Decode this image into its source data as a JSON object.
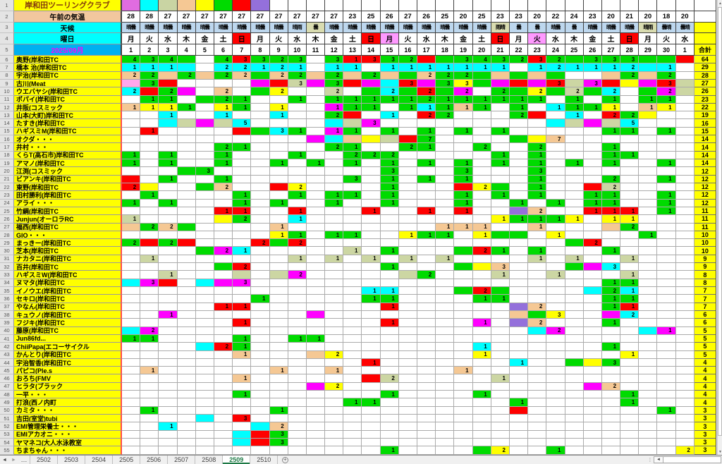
{
  "title": "岸和田ツーリングクラブ",
  "header": {
    "temp_label": "午前の気温",
    "weather_label": "天候",
    "day_label": "曜日",
    "month_label": "2025/09月",
    "total_label": "合計"
  },
  "legend_colors": [
    "#E06CE0",
    "#00FFFF",
    "#C9D4A3",
    "#F5C894",
    "#FFFF00",
    "#00DB00",
    "#FF0000",
    "#9470DB"
  ],
  "temps": [
    28,
    28,
    27,
    27,
    27,
    27,
    27,
    27,
    27,
    27,
    27,
    27,
    23,
    25,
    26,
    27,
    26,
    25,
    20,
    25,
    23,
    23,
    20,
    22,
    24,
    23,
    20,
    21,
    20,
    18,
    20
  ],
  "weather": [
    [
      "晴曇",
      0
    ],
    [
      "晴曇",
      0
    ],
    [
      "晴曇",
      0
    ],
    [
      "晴曇",
      0
    ],
    [
      "晴曇",
      0
    ],
    [
      "晴曇",
      0
    ],
    [
      "晴曇",
      0
    ],
    [
      "晴曇",
      0
    ],
    [
      "晴曇",
      0
    ],
    [
      "晴雨",
      0
    ],
    [
      "曇",
      1
    ],
    [
      "晴曇",
      0
    ],
    [
      "晴曇",
      0
    ],
    [
      "晴曇",
      0
    ],
    [
      "晴曇",
      0
    ],
    [
      "晴曇",
      0
    ],
    [
      "晴曇",
      0
    ],
    [
      "晴曇",
      0
    ],
    [
      "晴曇",
      0
    ],
    [
      "晴曇",
      0
    ],
    [
      "雨晴",
      1
    ],
    [
      "曇",
      0
    ],
    [
      "曇",
      0
    ],
    [
      "晴曇",
      0
    ],
    [
      "曇",
      0
    ],
    [
      "晴曇",
      0
    ],
    [
      "晴曇",
      0
    ],
    [
      "晴曇",
      0
    ],
    [
      "晴雨",
      1
    ],
    [
      "曇晴",
      0
    ],
    [
      "曇晴",
      0
    ]
  ],
  "weather_bg": {
    "0": "#BDD7EE",
    "1": "#D9DCB0"
  },
  "days": [
    [
      "月",
      "n"
    ],
    [
      "火",
      "n"
    ],
    [
      "水",
      "n"
    ],
    [
      "木",
      "n"
    ],
    [
      "金",
      "n"
    ],
    [
      "土",
      "n"
    ],
    [
      "日",
      "s"
    ],
    [
      "月",
      "n"
    ],
    [
      "火",
      "n"
    ],
    [
      "水",
      "n"
    ],
    [
      "木",
      "n"
    ],
    [
      "金",
      "n"
    ],
    [
      "土",
      "n"
    ],
    [
      "日",
      "s"
    ],
    [
      "月",
      "h"
    ],
    [
      "火",
      "n"
    ],
    [
      "水",
      "n"
    ],
    [
      "木",
      "n"
    ],
    [
      "金",
      "n"
    ],
    [
      "土",
      "n"
    ],
    [
      "日",
      "s"
    ],
    [
      "月",
      "n"
    ],
    [
      "火",
      "h"
    ],
    [
      "水",
      "n"
    ],
    [
      "木",
      "n"
    ],
    [
      "金",
      "n"
    ],
    [
      "土",
      "n"
    ],
    [
      "日",
      "s"
    ],
    [
      "月",
      "n"
    ],
    [
      "火",
      "n"
    ],
    [
      "水",
      "n"
    ]
  ],
  "day_bg": {
    "n": "#FFFFFF",
    "s": "#FF0000",
    "h": "#FF99FF"
  },
  "dates": [
    1,
    2,
    3,
    4,
    5,
    6,
    7,
    8,
    9,
    10,
    11,
    12,
    13,
    14,
    15,
    16,
    17,
    18,
    19,
    20,
    21,
    22,
    23,
    24,
    25,
    26,
    27,
    28,
    29,
    30,
    1
  ],
  "palette": {
    "G": "#00DB00",
    "C": "#00FFFF",
    "M": "#FF00FF",
    "R": "#FF0000",
    "Y": "#FFFF00",
    "T": "#F5C894",
    "O": "#CCD6A3",
    "P": "#9470DB",
    "K": "#FFA6EC",
    "W": "#FFFFFF"
  },
  "members": [
    {
      "name": "奥野(岸和田TC",
      "total": 64,
      "cells": {
        "1": "G4",
        "2": "G3",
        "3": "G4",
        "4": "G",
        "6": "G4",
        "7": "R3",
        "8": "G3",
        "9": "G2",
        "10": "G3",
        "12": "G3",
        "13": "R1",
        "14": "R3",
        "15": "G3",
        "16": "G2",
        "17": "R",
        "18": "G",
        "19": "G3",
        "20": "G4",
        "21": "G3",
        "22": "G2",
        "23": "R3",
        "24": "G2",
        "25": "G",
        "26": "G3",
        "27": "G3",
        "28": "G3",
        "29": "G",
        "30": "G",
        "31": "R"
      }
    },
    {
      "name": "橋本 治(岸和田TC",
      "total": 29,
      "cells": {
        "1": "C1",
        "2": "C1",
        "3": "C1",
        "4": "C",
        "6": "C2",
        "7": "C2",
        "8": "C1",
        "9": "C2",
        "10": "C1",
        "12": "C1",
        "13": "C1",
        "15": "C1",
        "16": "C1",
        "17": "C1",
        "18": "C1",
        "19": "C1",
        "20": "C1",
        "21": "C1",
        "23": "C1",
        "24": "C2",
        "25": "C1",
        "26": "C1",
        "27": "C1",
        "28": "C2",
        "29": "C",
        "30": "C1"
      }
    },
    {
      "name": "宇治(岸和田TC",
      "total": 28,
      "cells": {
        "1": "T2",
        "2": "G2",
        "3": "T",
        "4": "G2",
        "5": "T",
        "6": "G2",
        "7": "T2",
        "8": "G",
        "9": "T2",
        "10": "G2",
        "11": "T",
        "12": "G2",
        "13": "T",
        "14": "G2",
        "15": "T",
        "16": "G",
        "17": "T2",
        "18": "G2",
        "19": "G2",
        "20": "G",
        "21": "T",
        "22": "G",
        "23": "T",
        "24": "G",
        "27": "T",
        "28": "G2",
        "29": "T",
        "30": "G2"
      }
    },
    {
      "name": "古川(Meat",
      "total": 27,
      "cells": {
        "1": "K",
        "2": "G3",
        "3": "R",
        "8": "M",
        "9": "R",
        "10": "O3",
        "11": "M",
        "12": "G3",
        "13": "R",
        "14": "M",
        "15": "C",
        "16": "R3",
        "17": "M",
        "18": "G3",
        "19": "Y3",
        "20": "G",
        "21": "M",
        "22": "R",
        "23": "M",
        "24": "R3",
        "25": "O",
        "26": "M3",
        "27": "R",
        "28": "Y",
        "29": "M",
        "30": "R3",
        "31": "O"
      }
    },
    {
      "name": "ウエバヤシ(岸和田TC",
      "total": 26,
      "cells": {
        "1": "C2",
        "2": "R",
        "3": "G2",
        "4": "M",
        "6": "T2",
        "8": "G",
        "9": "Y2",
        "12": "O2",
        "14": "G",
        "15": "C2",
        "16": "G",
        "17": "R2",
        "18": "G",
        "19": "M2",
        "21": "G2",
        "22": "G",
        "23": "Y2",
        "24": "G",
        "25": "O2",
        "26": "G",
        "27": "C2",
        "29": "G",
        "30": "M2",
        "31": "O"
      }
    },
    {
      "name": "ポパイ(岸和田TC",
      "total": 23,
      "cells": {
        "2": "G1",
        "3": "G1",
        "5": "G",
        "6": "G2",
        "7": "G1",
        "10": "G1",
        "12": "G1",
        "13": "G1",
        "14": "G1",
        "15": "G1",
        "16": "G1",
        "17": "G2",
        "18": "G1",
        "19": "G1",
        "20": "G1",
        "21": "G1",
        "22": "G1",
        "23": "G1",
        "25": "G1",
        "27": "G1",
        "29": "G1",
        "30": "G1"
      }
    },
    {
      "name": "井阪(コスミック",
      "total": 22,
      "cells": {
        "1": "T1",
        "2": "Y1",
        "3": "Y1",
        "4": "G1",
        "6": "Y1",
        "7": "G1",
        "9": "Y1",
        "12": "M1",
        "13": "G1",
        "14": "G1",
        "16": "G1",
        "17": "C1",
        "18": "G1",
        "19": "T1",
        "20": "G1",
        "22": "G1",
        "24": "C1",
        "25": "G1",
        "26": "G1",
        "27": "Y1",
        "29": "T1",
        "30": "Y1"
      }
    },
    {
      "name": "山本(大町)岸和田TC",
      "total": 19,
      "cells": {
        "3": "C1",
        "6": "C1",
        "9": "C1",
        "12": "G2",
        "13": "R",
        "15": "C1",
        "17": "R2",
        "18": "G2",
        "22": "G2",
        "23": "R",
        "25": "C1",
        "27": "R2",
        "28": "G2",
        "29": "Y"
      }
    },
    {
      "name": "たすき(岸和田TC",
      "total": 16,
      "cells": {
        "3": "C",
        "4": "O",
        "5": "M",
        "6": "O",
        "7": "C5",
        "12": "C",
        "13": "O",
        "14": "M3",
        "24": "C",
        "25": "O",
        "26": "M",
        "27": "O",
        "28": "C5"
      }
    },
    {
      "name": "ハギスミM(岸和田TC",
      "total": 15,
      "cells": {
        "2": "R1",
        "7": "R",
        "8": "G",
        "9": "C3",
        "10": "G1",
        "12": "M1",
        "13": "G1",
        "15": "G1",
        "17": "G1",
        "19": "G1",
        "21": "G1",
        "27": "G1",
        "28": "G1",
        "30": "G1"
      }
    },
    {
      "name": "オクダ・・・",
      "total": 14,
      "cells": {
        "11": "M",
        "12": "C",
        "13": "T",
        "14": "Y",
        "15": "O",
        "16": "R",
        "17": "G7",
        "22": "G",
        "23": "Y",
        "24": "T7"
      }
    },
    {
      "name": "井村・・・",
      "total": 14,
      "cells": {
        "6": "G2",
        "7": "G1",
        "12": "G2",
        "13": "G1",
        "16": "G2",
        "17": "G1",
        "20": "G2",
        "23": "G2",
        "27": "G1"
      }
    },
    {
      "name": "くらT(高石市)岸和田TC",
      "total": 14,
      "cells": {
        "1": "G1",
        "3": "G1",
        "6": "G1",
        "10": "G1",
        "13": "G2",
        "14": "G2",
        "15": "G2",
        "21": "G1",
        "23": "G1",
        "27": "G1",
        "28": "G1"
      }
    },
    {
      "name": "アマノ(岸和田TC",
      "total": 14,
      "cells": {
        "1": "G1",
        "3": "G1",
        "6": "G1",
        "9": "G1",
        "11": "G1",
        "13": "G1",
        "15": "G1",
        "17": "G1",
        "19": "G1",
        "21": "G1",
        "23": "G1",
        "25": "G1",
        "27": "G1",
        "30": "G1"
      }
    },
    {
      "name": "江渕(コスミック",
      "total": 12,
      "cells": {
        "4": "G",
        "5": "G3",
        "15": "G3",
        "19": "G3",
        "23": "G3"
      }
    },
    {
      "name": "ビアンキ(岸和田TC",
      "total": 12,
      "cells": {
        "1": "R",
        "3": "G1",
        "6": "G1",
        "13": "G3",
        "15": "G1",
        "17": "G1",
        "19": "G1",
        "23": "G1",
        "27": "G2",
        "30": "G1"
      }
    },
    {
      "name": "東野(岸和田TC",
      "total": 12,
      "cells": {
        "1": "R2",
        "2": "Y",
        "5": "G",
        "6": "T2",
        "9": "R",
        "10": "Y2",
        "15": "G1",
        "19": "R",
        "20": "Y2",
        "21": "G",
        "23": "G1",
        "26": "R",
        "27": "O2"
      }
    },
    {
      "name": "田村勝利(岸和田TC",
      "total": 12,
      "cells": {
        "2": "G1",
        "7": "G1",
        "10": "G1",
        "12": "G1",
        "13": "G1",
        "15": "G1",
        "19": "G1",
        "21": "G1",
        "23": "G1",
        "26": "G1",
        "27": "G1",
        "30": "G1"
      }
    },
    {
      "name": "アライ・・・",
      "total": 12,
      "cells": {
        "1": "G1",
        "3": "G1",
        "7": "G1",
        "9": "G1",
        "12": "G1",
        "15": "G1",
        "19": "G1",
        "22": "G1",
        "24": "G1",
        "26": "G1",
        "27": "G1",
        "30": "G1"
      }
    },
    {
      "name": "竹綱(岸和田TC",
      "total": 11,
      "cells": {
        "6": "R1",
        "7": "R1",
        "10": "R1",
        "14": "R1",
        "17": "R1",
        "19": "R1",
        "22": "P",
        "23": "T2",
        "26": "R1",
        "27": "R1",
        "28": "R1",
        "30": "G1"
      }
    },
    {
      "name": "Junjun(オーロラRC",
      "total": 11,
      "cells": {
        "1": "O1",
        "6": "Y",
        "7": "G2",
        "10": "C1",
        "21": "Y1",
        "22": "G1",
        "23": "G1",
        "24": "G1",
        "25": "Y1",
        "27": "Y1",
        "28": "Y1"
      }
    },
    {
      "name": "福西(岸和田TC",
      "total": 11,
      "cells": {
        "1": "T",
        "2": "G2",
        "3": "T2",
        "4": "G",
        "9": "T1",
        "18": "T1",
        "19": "T1",
        "20": "T1",
        "23": "T1",
        "27": "T",
        "28": "G2"
      }
    },
    {
      "name": "GIO・・・",
      "total": 10,
      "cells": {
        "9": "Y1",
        "10": "G1",
        "12": "G1",
        "13": "G1",
        "16": "Y1",
        "17": "G1",
        "18": "G1",
        "20": "Y1",
        "21": "G",
        "22": "G",
        "24": "Y1",
        "29": "G1"
      }
    },
    {
      "name": "まっきー(岸和田TC",
      "total": 10,
      "cells": {
        "1": "G2",
        "2": "R",
        "3": "G2",
        "4": "R",
        "8": "R2",
        "9": "G",
        "10": "R2",
        "25": "G",
        "26": "R2"
      }
    },
    {
      "name": "芝本(岸和田TC",
      "total": 10,
      "cells": {
        "5": "G",
        "6": "M2",
        "7": "C1",
        "13": "O1",
        "15": "G1",
        "19": "G",
        "20": "R2",
        "21": "G1",
        "23": "G1",
        "27": "G1"
      }
    },
    {
      "name": "ナカタニ(岸和田TC",
      "total": 9,
      "cells": {
        "2": "O1",
        "10": "O1",
        "12": "O1",
        "14": "O1",
        "16": "O1",
        "18": "O1",
        "23": "O1",
        "25": "O1",
        "28": "O1"
      }
    },
    {
      "name": "百井(岸和田TC",
      "total": 9,
      "cells": {
        "6": "G",
        "7": "R2",
        "15": "G1",
        "19": "G",
        "20": "Y",
        "21": "T3",
        "25": "G",
        "26": "M",
        "27": "C3"
      }
    },
    {
      "name": "ハギスミW(岸和田TC",
      "total": 8,
      "cells": {
        "3": "O1",
        "7": "O",
        "9": "O",
        "10": "M2",
        "16": "O",
        "17": "G2",
        "21": "O1",
        "24": "O1",
        "28": "O1"
      }
    },
    {
      "name": "ヌマタ(岸和田TC",
      "total": 8,
      "cells": {
        "1": "C",
        "2": "M3",
        "3": "R",
        "5": "C",
        "6": "M",
        "7": "M3",
        "27": "G1",
        "28": "G1"
      }
    },
    {
      "name": "イノウエ(岸和田TC",
      "total": 7,
      "cells": {
        "14": "C1",
        "15": "C1",
        "19": "G",
        "20": "R2",
        "21": "G",
        "26": "C",
        "27": "G2",
        "28": "C1"
      }
    },
    {
      "name": "セキロ(岸和田TC",
      "total": 7,
      "cells": {
        "8": "G1",
        "14": "G1",
        "15": "G1",
        "20": "G1",
        "21": "G1",
        "27": "G1",
        "28": "G1"
      }
    },
    {
      "name": "やなん(岸和田TC",
      "total": 7,
      "cells": {
        "6": "R1",
        "7": "R1",
        "15": "R1",
        "22": "P",
        "23": "T2",
        "27": "G1",
        "28": "R1"
      }
    },
    {
      "name": "キュウノ(岸和田TC",
      "total": 6,
      "cells": {
        "3": "M1",
        "11": "M",
        "22": "T",
        "23": "G",
        "24": "Y3",
        "27": "M",
        "28": "C2"
      }
    },
    {
      "name": "フジキ(岸和田TC",
      "total": 6,
      "cells": {
        "7": "R1",
        "15": "R1",
        "20": "M1",
        "22": "P",
        "23": "T2",
        "27": "G1"
      }
    },
    {
      "name": "藤原(岸和田TC",
      "total": 5,
      "cells": {
        "1": "C",
        "2": "M2",
        "23": "C",
        "24": "M2",
        "29": "C",
        "30": "M1"
      }
    },
    {
      "name": "Jun86fd...",
      "total": 5,
      "cells": {
        "1": "G1",
        "2": "G1",
        "7": "G1",
        "10": "G1",
        "11": "G1"
      }
    },
    {
      "name": "ChiiPapa(エコーサイクル",
      "total": 5,
      "cells": {
        "5": "C",
        "6": "R2",
        "7": "G1",
        "20": "C1",
        "27": "G1"
      }
    },
    {
      "name": "かんとり(岸和田TC",
      "total": 5,
      "cells": {
        "7": "T1",
        "11": "T",
        "12": "Y2",
        "20": "Y1",
        "28": "Y1"
      }
    },
    {
      "name": "宇治智香(岸和田TC",
      "total": 4,
      "cells": {
        "14": "R1",
        "22": "C1",
        "25": "G",
        "26": "Y",
        "27": "G3"
      }
    },
    {
      "name": "パピコ(Ple.s",
      "total": 4,
      "cells": {
        "2": "T1",
        "9": "T1",
        "12": "T1",
        "19": "T1"
      }
    },
    {
      "name": "おろち(FMV",
      "total": 4,
      "cells": {
        "7": "T1",
        "14": "R",
        "15": "O2",
        "21": "O1"
      }
    },
    {
      "name": "ヒラタ(ブラック",
      "total": 4,
      "cells": {
        "11": "M",
        "12": "Y2",
        "26": "M",
        "27": "T2"
      }
    },
    {
      "name": "一平・・・",
      "total": 4,
      "cells": {
        "7": "G1",
        "15": "G1",
        "20": "G1",
        "28": "G1"
      }
    },
    {
      "name": "打浪(西ノ内町",
      "total": 4,
      "cells": {
        "13": "G1",
        "14": "G1",
        "22": "G1",
        "28": "G1"
      }
    },
    {
      "name": "カミタ・・・",
      "total": 3,
      "cells": {
        "2": "G1",
        "9": "G1",
        "22": "R",
        "30": "G1"
      }
    },
    {
      "name": "吉田(室堂)tubi",
      "total": 3,
      "cells": {
        "5": "C",
        "7": "R3"
      }
    },
    {
      "name": "EMI管理栄養士・・・",
      "total": 3,
      "cells": {
        "3": "C1",
        "8": "C",
        "9": "T2"
      }
    },
    {
      "name": "EMIアカオニ・・・",
      "total": 3,
      "cells": {
        "7": "C",
        "8": "R",
        "9": "G3"
      }
    },
    {
      "name": "ヤマネコ(大人水泳教室",
      "total": 3,
      "cells": {
        "7": "C",
        "8": "R",
        "9": "G3"
      }
    },
    {
      "name": "ちまちゃん・・・",
      "total": 3,
      "cells": {
        "15": "G1",
        "20": "G",
        "21": "Y2",
        "24": "G1",
        "31": "Y2"
      }
    }
  ],
  "tabs": {
    "items": [
      "2502",
      "2503",
      "2504",
      "2505",
      "2506",
      "2507",
      "2508",
      "2509",
      "2510"
    ],
    "active": "2509"
  },
  "icons": {
    "tab_prev": "◄",
    "tab_next": "►",
    "tab_more": "…",
    "add_sheet": "+",
    "scroll_up": "▲",
    "scroll_down": "▼",
    "scroll_left": "◄",
    "grip": "⁞"
  }
}
